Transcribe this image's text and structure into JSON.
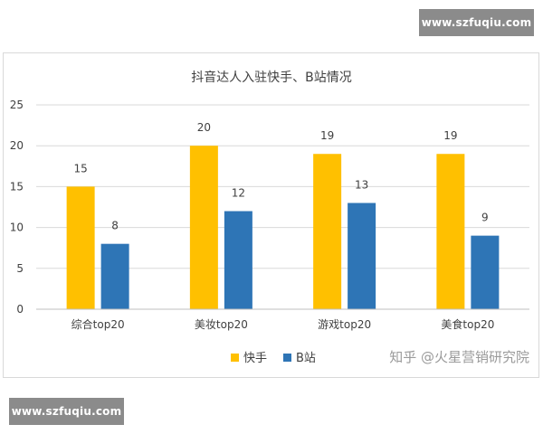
{
  "watermark": {
    "top": "www.szfuqiu.com",
    "bottom": "www.szfuqiu.com"
  },
  "source_mark": "知乎 @火星营销研究院",
  "colors": {
    "kuaishou": "#ffc000",
    "bilibili": "#2e75b6",
    "grid": "#d9d9d9",
    "axis": "#bfbfbf",
    "text": "#404040"
  },
  "chart_data": {
    "type": "bar",
    "title": "抖音达人入驻快手、B站情况",
    "categories": [
      "综合top20",
      "美妆top20",
      "游戏top20",
      "美食top20"
    ],
    "series": [
      {
        "name": "快手",
        "values": [
          15,
          20,
          19,
          19
        ]
      },
      {
        "name": "B站",
        "values": [
          8,
          12,
          13,
          9
        ]
      }
    ],
    "xlabel": "",
    "ylabel": "",
    "ylim": [
      0,
      25
    ],
    "yticks": [
      0,
      5,
      10,
      15,
      20,
      25
    ],
    "grid": true,
    "legend": "bottom",
    "data_labels": true
  }
}
